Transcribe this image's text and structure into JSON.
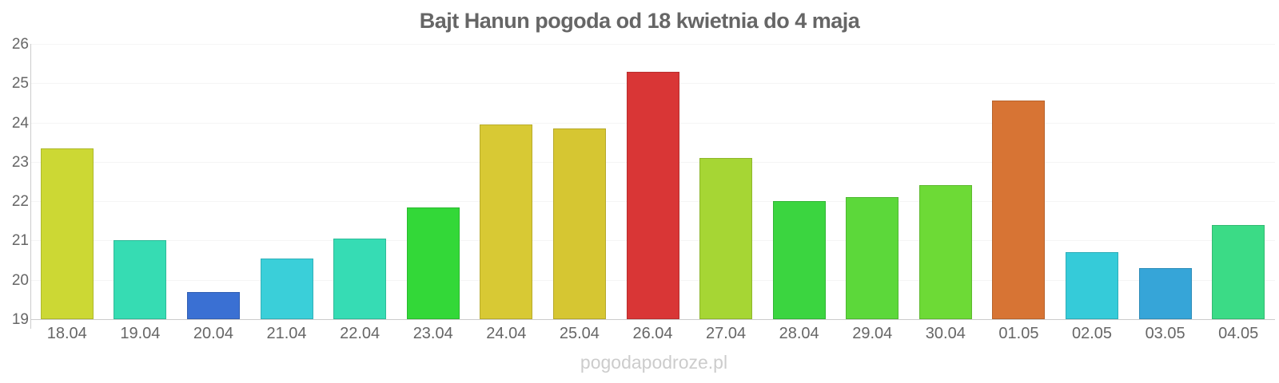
{
  "title": "Bajt Hanun pogoda od 18 kwietnia do 4 maja",
  "watermark": "pogodapodroze.pl",
  "chart_data": {
    "type": "bar",
    "title": "Bajt Hanun pogoda od 18 kwietnia do 4 maja",
    "xlabel": "",
    "ylabel": "",
    "categories": [
      "18.04",
      "19.04",
      "20.04",
      "21.04",
      "22.04",
      "23.04",
      "24.04",
      "25.04",
      "26.04",
      "27.04",
      "28.04",
      "29.04",
      "30.04",
      "01.05",
      "02.05",
      "03.05",
      "04.05"
    ],
    "values": [
      23.35,
      21.0,
      19.7,
      20.55,
      21.05,
      21.85,
      23.95,
      23.85,
      25.3,
      23.1,
      22.0,
      22.1,
      22.4,
      24.55,
      20.7,
      20.3,
      21.4
    ],
    "bar_colors": [
      "#ccd834",
      "#36dcb3",
      "#3a70d3",
      "#3acfd9",
      "#36dcb4",
      "#33d838",
      "#d8c934",
      "#d6c632",
      "#d93636",
      "#a6d634",
      "#3bd540",
      "#5cd83a",
      "#6dda36",
      "#d77434",
      "#35cbd9",
      "#36a5d8",
      "#3bdb86"
    ],
    "ylim": [
      19,
      26
    ],
    "yticks": [
      19,
      20,
      21,
      22,
      23,
      24,
      25,
      26
    ],
    "grid": true,
    "legend": false,
    "text_color": "#666666",
    "axis_color": "#cccccc",
    "grid_color": "#f5f5f5",
    "watermark_color": "#cccccc"
  }
}
